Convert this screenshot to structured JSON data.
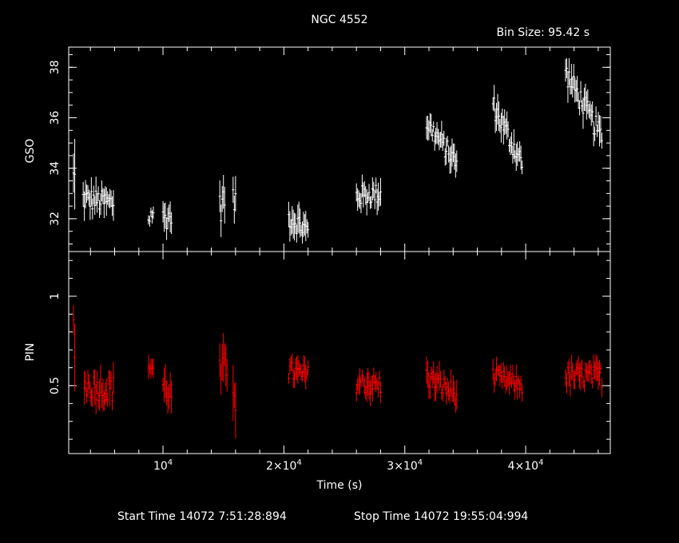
{
  "chart_data": {
    "type": "scatter",
    "title": "NGC 4552",
    "bin_size_label": "Bin Size: 95.42 s",
    "xlabel": "Time (s)",
    "xlim": [
      2200,
      47000
    ],
    "x_ticks": [
      {
        "value": 10000,
        "label": "10^4"
      },
      {
        "value": 20000,
        "label": "2×10^4"
      },
      {
        "value": 30000,
        "label": "3×10^4"
      },
      {
        "value": 40000,
        "label": "4×10^4"
      }
    ],
    "footer": {
      "start": "Start Time 14072  7:51:28:894",
      "stop": "Stop Time 14072 19:55:04:994"
    },
    "panels": [
      {
        "name": "GSO",
        "ylabel": "GSO",
        "ylim": [
          30.7,
          38.8
        ],
        "y_ticks": [
          32,
          34,
          36,
          38
        ],
        "color": "#ffffff",
        "segments": [
          {
            "x0": 2600,
            "x1": 2700,
            "y0": 33.5,
            "y1": 33.5,
            "noise": 2.0
          },
          {
            "x0": 3400,
            "x1": 5900,
            "y0": 32.8,
            "y1": 32.6,
            "noise": 0.9
          },
          {
            "x0": 8800,
            "x1": 9200,
            "y0": 32.0,
            "y1": 32.3,
            "noise": 0.7
          },
          {
            "x0": 10000,
            "x1": 10700,
            "y0": 32.0,
            "y1": 32.1,
            "noise": 0.9
          },
          {
            "x0": 14700,
            "x1": 15100,
            "y0": 32.4,
            "y1": 32.8,
            "noise": 1.2
          },
          {
            "x0": 15800,
            "x1": 16000,
            "y0": 32.6,
            "y1": 32.8,
            "noise": 1.1
          },
          {
            "x0": 20400,
            "x1": 22000,
            "y0": 32.1,
            "y1": 31.5,
            "noise": 0.9
          },
          {
            "x0": 26000,
            "x1": 28000,
            "y0": 32.9,
            "y1": 33.0,
            "noise": 0.8
          },
          {
            "x0": 31800,
            "x1": 34300,
            "y0": 35.8,
            "y1": 34.2,
            "noise": 0.8
          },
          {
            "x0": 37300,
            "x1": 39700,
            "y0": 36.5,
            "y1": 34.2,
            "noise": 0.9
          },
          {
            "x0": 43300,
            "x1": 46300,
            "y0": 37.8,
            "y1": 35.2,
            "noise": 0.9
          }
        ]
      },
      {
        "name": "PIN",
        "ylabel": "PIN",
        "ylim": [
          0.12,
          1.25
        ],
        "y_ticks": [
          0.5,
          1
        ],
        "y_tick_labels": [
          "0.5",
          "1"
        ],
        "color": "#ff0000",
        "segments": [
          {
            "x0": 2600,
            "x1": 2700,
            "y0": 0.8,
            "y1": 0.8,
            "noise": 0.3
          },
          {
            "x0": 3500,
            "x1": 5900,
            "y0": 0.5,
            "y1": 0.48,
            "noise": 0.15
          },
          {
            "x0": 8800,
            "x1": 9200,
            "y0": 0.62,
            "y1": 0.6,
            "noise": 0.1
          },
          {
            "x0": 10000,
            "x1": 10700,
            "y0": 0.5,
            "y1": 0.45,
            "noise": 0.15
          },
          {
            "x0": 14700,
            "x1": 15300,
            "y0": 0.55,
            "y1": 0.6,
            "noise": 0.2
          },
          {
            "x0": 15800,
            "x1": 16000,
            "y0": 0.55,
            "y1": 0.45,
            "noise": 0.25
          },
          {
            "x0": 20400,
            "x1": 22000,
            "y0": 0.58,
            "y1": 0.55,
            "noise": 0.12
          },
          {
            "x0": 26000,
            "x1": 28000,
            "y0": 0.52,
            "y1": 0.5,
            "noise": 0.12
          },
          {
            "x0": 31800,
            "x1": 34300,
            "y0": 0.55,
            "y1": 0.45,
            "noise": 0.12
          },
          {
            "x0": 37300,
            "x1": 39700,
            "y0": 0.55,
            "y1": 0.5,
            "noise": 0.1
          },
          {
            "x0": 43300,
            "x1": 46300,
            "y0": 0.55,
            "y1": 0.55,
            "noise": 0.12
          }
        ]
      }
    ]
  }
}
